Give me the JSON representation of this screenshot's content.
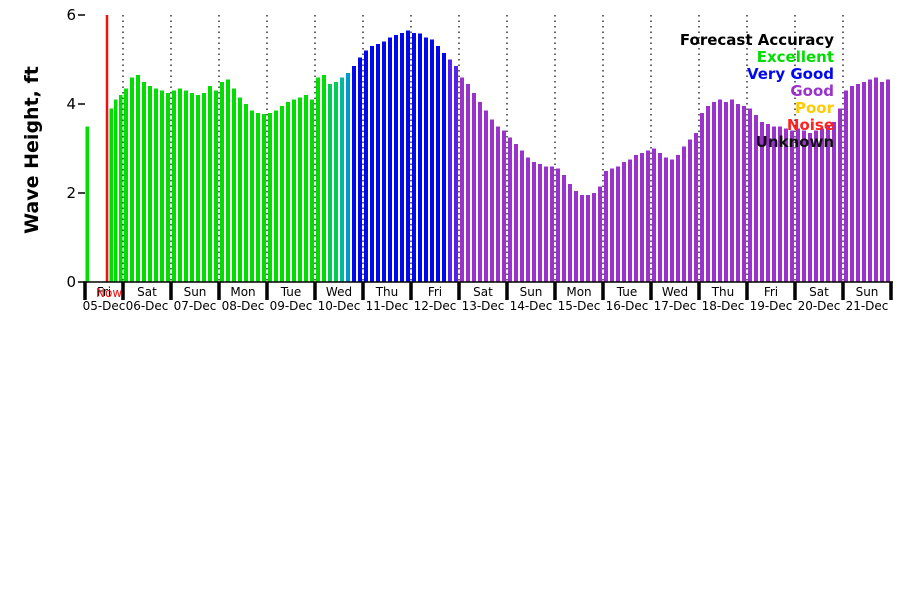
{
  "chart_data": {
    "type": "bar",
    "title": "",
    "ylabel": "Wave Height, ft",
    "ylim": [
      0,
      6
    ],
    "yticks": [
      0,
      2,
      4,
      6
    ],
    "grid": "vertical-dotted-at-day-boundaries",
    "legend_position": "top-right",
    "legend_title": "Forecast Accuracy",
    "legend": [
      {
        "label": "Excellent",
        "color": "#00dd00"
      },
      {
        "label": "Very Good",
        "color": "#0008ee"
      },
      {
        "label": "Good",
        "color": "#9933cc"
      },
      {
        "label": "Poor",
        "color": "#ffcc00"
      },
      {
        "label": "Noise",
        "color": "#ff2222"
      },
      {
        "label": "Unknown",
        "color": "#111111"
      }
    ],
    "now_label": "Now",
    "now_line_color": "#ee1111",
    "bar_palette": {
      "ex": "#00dd00",
      "t1": "#00cc55",
      "t2": "#00bb99",
      "t3": "#0099cc",
      "vg": "#0008ee",
      "tv": "#5522ee",
      "gd": "#9933cc"
    },
    "days": [
      {
        "name": "Fri",
        "date": "05-Dec",
        "partial": true,
        "color": "ex",
        "heights": [
          3.5,
          null,
          null,
          null,
          null,
          3.9,
          4.1,
          4.2
        ]
      },
      {
        "name": "Sat",
        "date": "06-Dec",
        "color": "ex",
        "heights": [
          4.35,
          4.6,
          4.65,
          4.5,
          4.4,
          4.35,
          4.3,
          4.25
        ]
      },
      {
        "name": "Sun",
        "date": "07-Dec",
        "color": "ex",
        "heights": [
          4.3,
          4.35,
          4.3,
          4.25,
          4.2,
          4.25,
          4.4,
          4.3
        ]
      },
      {
        "name": "Mon",
        "date": "08-Dec",
        "color": "ex",
        "heights": [
          4.5,
          4.55,
          4.35,
          4.15,
          4.0,
          3.85,
          3.8,
          3.78
        ]
      },
      {
        "name": "Tue",
        "date": "09-Dec",
        "color": "ex",
        "heights": [
          3.8,
          3.85,
          3.95,
          4.05,
          4.1,
          4.15,
          4.2,
          4.1
        ]
      },
      {
        "name": "Wed",
        "date": "10-Dec",
        "colors": [
          "ex",
          "ex",
          "t1",
          "t1",
          "t2",
          "t3",
          "vg",
          "vg"
        ],
        "heights": [
          4.6,
          4.65,
          4.45,
          4.5,
          4.6,
          4.7,
          4.85,
          5.05
        ]
      },
      {
        "name": "Thu",
        "date": "11-Dec",
        "color": "vg",
        "heights": [
          5.2,
          5.3,
          5.35,
          5.4,
          5.5,
          5.55,
          5.6,
          5.65
        ]
      },
      {
        "name": "Fri",
        "date": "12-Dec",
        "colors": [
          "vg",
          "vg",
          "vg",
          "vg",
          "vg",
          "vg",
          "tv",
          "tv"
        ],
        "heights": [
          5.6,
          5.58,
          5.5,
          5.45,
          5.3,
          5.15,
          5.0,
          4.85
        ]
      },
      {
        "name": "Sat",
        "date": "13-Dec",
        "color": "gd",
        "heights": [
          4.6,
          4.45,
          4.25,
          4.05,
          3.85,
          3.65,
          3.5,
          3.4
        ]
      },
      {
        "name": "Sun",
        "date": "14-Dec",
        "color": "gd",
        "heights": [
          3.25,
          3.1,
          2.95,
          2.8,
          2.7,
          2.65,
          2.6,
          2.6
        ]
      },
      {
        "name": "Mon",
        "date": "15-Dec",
        "color": "gd",
        "heights": [
          2.55,
          2.4,
          2.2,
          2.05,
          1.95,
          1.95,
          2.0,
          2.15
        ]
      },
      {
        "name": "Tue",
        "date": "16-Dec",
        "color": "gd",
        "heights": [
          2.5,
          2.55,
          2.6,
          2.7,
          2.75,
          2.85,
          2.9,
          2.95
        ]
      },
      {
        "name": "Wed",
        "date": "17-Dec",
        "color": "gd",
        "heights": [
          3.0,
          2.9,
          2.8,
          2.75,
          2.85,
          3.05,
          3.2,
          3.35
        ]
      },
      {
        "name": "Thu",
        "date": "18-Dec",
        "color": "gd",
        "heights": [
          3.8,
          3.95,
          4.05,
          4.1,
          4.05,
          4.1,
          4.0,
          3.95
        ]
      },
      {
        "name": "Fri",
        "date": "19-Dec",
        "color": "gd",
        "heights": [
          3.9,
          3.75,
          3.6,
          3.55,
          3.5,
          3.5,
          3.45,
          3.4
        ]
      },
      {
        "name": "Sat",
        "date": "20-Dec",
        "color": "gd",
        "heights": [
          3.45,
          3.4,
          3.35,
          3.4,
          3.45,
          3.5,
          3.6,
          3.9
        ]
      },
      {
        "name": "Sun",
        "date": "21-Dec",
        "color": "gd",
        "heights": [
          4.3,
          4.4,
          4.45,
          4.5,
          4.55,
          4.6,
          4.5,
          4.55
        ]
      }
    ]
  }
}
